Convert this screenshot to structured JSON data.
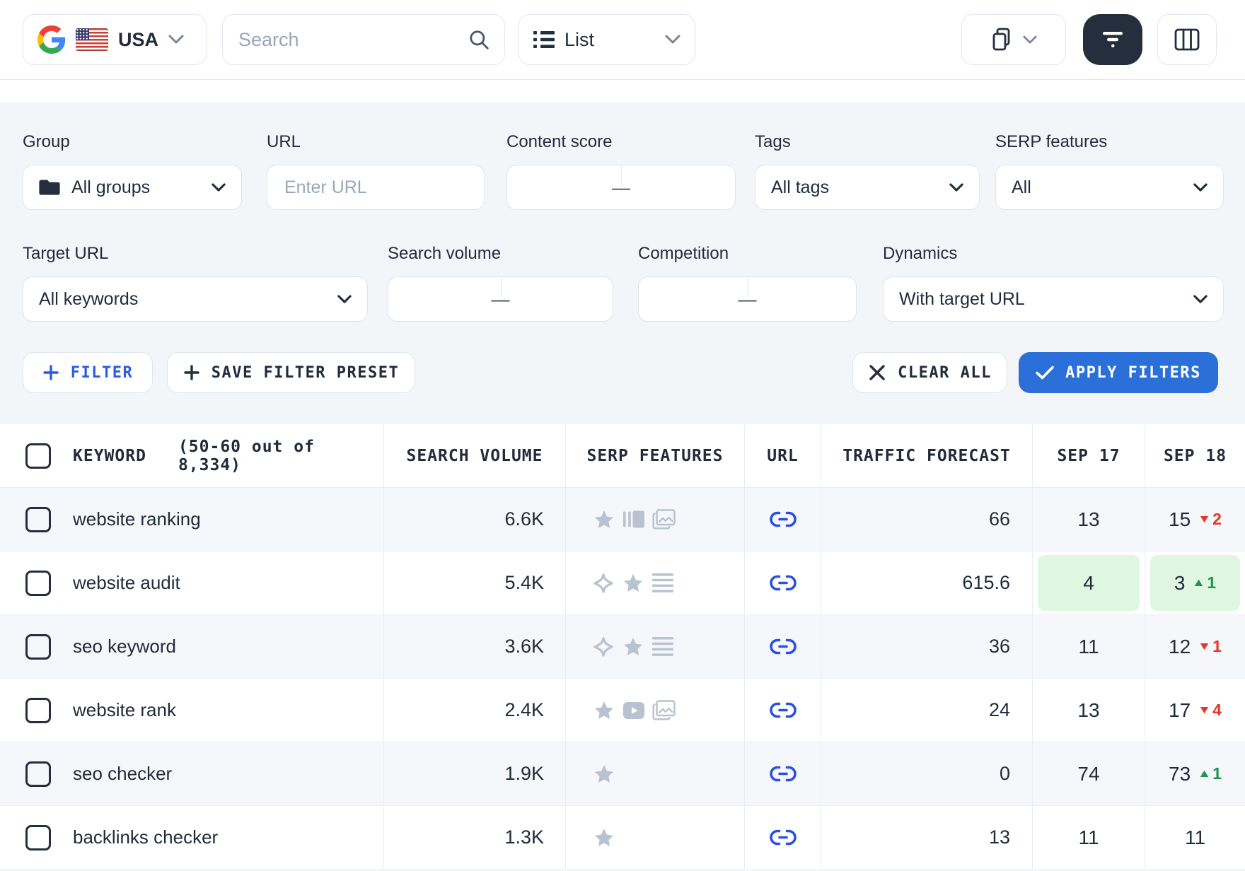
{
  "colors": {
    "accent_blue": "#2b70d9",
    "filter_link_blue": "#2b5be4",
    "url_link_blue": "#2a4fe4",
    "negative_red": "#e4372b",
    "positive_green": "#1f9254",
    "highlight_green_bg": "#dff7e0",
    "serp_icon_gray": "#b9c2d0",
    "dark_navy": "#252e3d",
    "panel_gray": "#f3f5f9"
  },
  "toolbar": {
    "search_engine_icon": "google-logo",
    "country": {
      "flag_icon": "us-flag",
      "label": "USA"
    },
    "search_placeholder": "Search",
    "view_selector": {
      "icon": "list-icon",
      "label": "List"
    },
    "copy_button_icon": "copy-icon",
    "filter_toggle_icon": "filter-lines-icon",
    "columns_button_icon": "columns-icon"
  },
  "filters": {
    "fields": [
      {
        "id": "group",
        "label": "Group",
        "type": "select",
        "value": "All groups",
        "icon": "folder-icon"
      },
      {
        "id": "url",
        "label": "URL",
        "type": "input",
        "placeholder": "Enter URL"
      },
      {
        "id": "content_score",
        "label": "Content score",
        "type": "range",
        "value": "—"
      },
      {
        "id": "tags",
        "label": "Tags",
        "type": "select",
        "value": "All tags"
      },
      {
        "id": "serp_features",
        "label": "SERP features",
        "type": "select",
        "value": "All"
      },
      {
        "id": "target_url",
        "label": "Target URL",
        "type": "select",
        "value": "All keywords"
      },
      {
        "id": "search_volume",
        "label": "Search volume",
        "type": "range",
        "value": "—"
      },
      {
        "id": "competition",
        "label": "Competition",
        "type": "range",
        "value": "—"
      },
      {
        "id": "dynamics",
        "label": "Dynamics",
        "type": "select",
        "value": "With target URL"
      }
    ],
    "buttons": {
      "filter": "FILTER",
      "save_preset": "SAVE FILTER PRESET",
      "clear_all": "CLEAR ALL",
      "apply": "APPLY FILTERS"
    }
  },
  "table": {
    "header": {
      "keyword": "KEYWORD",
      "keyword_count": "(50-60 out of 8,334)",
      "search_volume": "SEARCH VOLUME",
      "serp_features": "SERP FEATURES",
      "url": "URL",
      "traffic_forecast": "TRAFFIC FORECAST",
      "date1": "SEP 17",
      "date2": "SEP 18"
    },
    "rows": [
      {
        "keyword": "website ranking",
        "search_volume": "6.6K",
        "serp_features": [
          "star",
          "carousel",
          "image-pack"
        ],
        "url_icon": "link",
        "traffic_forecast": "66",
        "pos_sep17": {
          "value": "13",
          "highlight": false
        },
        "pos_sep18": {
          "value": "15",
          "delta": "2",
          "dir": "down",
          "highlight": false
        }
      },
      {
        "keyword": "website audit",
        "search_volume": "5.4K",
        "serp_features": [
          "sparkle",
          "star",
          "text-lines"
        ],
        "url_icon": "link",
        "traffic_forecast": "615.6",
        "pos_sep17": {
          "value": "4",
          "highlight": true
        },
        "pos_sep18": {
          "value": "3",
          "delta": "1",
          "dir": "up",
          "highlight": true
        }
      },
      {
        "keyword": "seo keyword",
        "search_volume": "3.6K",
        "serp_features": [
          "sparkle",
          "star",
          "text-lines"
        ],
        "url_icon": "link",
        "traffic_forecast": "36",
        "pos_sep17": {
          "value": "11",
          "highlight": false
        },
        "pos_sep18": {
          "value": "12",
          "delta": "1",
          "dir": "down",
          "highlight": false
        }
      },
      {
        "keyword": "website rank",
        "search_volume": "2.4K",
        "serp_features": [
          "star",
          "video",
          "image-pack"
        ],
        "url_icon": "link",
        "traffic_forecast": "24",
        "pos_sep17": {
          "value": "13",
          "highlight": false
        },
        "pos_sep18": {
          "value": "17",
          "delta": "4",
          "dir": "down",
          "highlight": false
        }
      },
      {
        "keyword": "seo checker",
        "search_volume": "1.9K",
        "serp_features": [
          "star"
        ],
        "url_icon": "link",
        "traffic_forecast": "0",
        "pos_sep17": {
          "value": "74",
          "highlight": false
        },
        "pos_sep18": {
          "value": "73",
          "delta": "1",
          "dir": "up",
          "highlight": false
        }
      },
      {
        "keyword": "backlinks checker",
        "search_volume": "1.3K",
        "serp_features": [
          "star"
        ],
        "url_icon": "link",
        "traffic_forecast": "13",
        "pos_sep17": {
          "value": "11",
          "highlight": false
        },
        "pos_sep18": {
          "value": "11",
          "highlight": false
        }
      }
    ]
  }
}
